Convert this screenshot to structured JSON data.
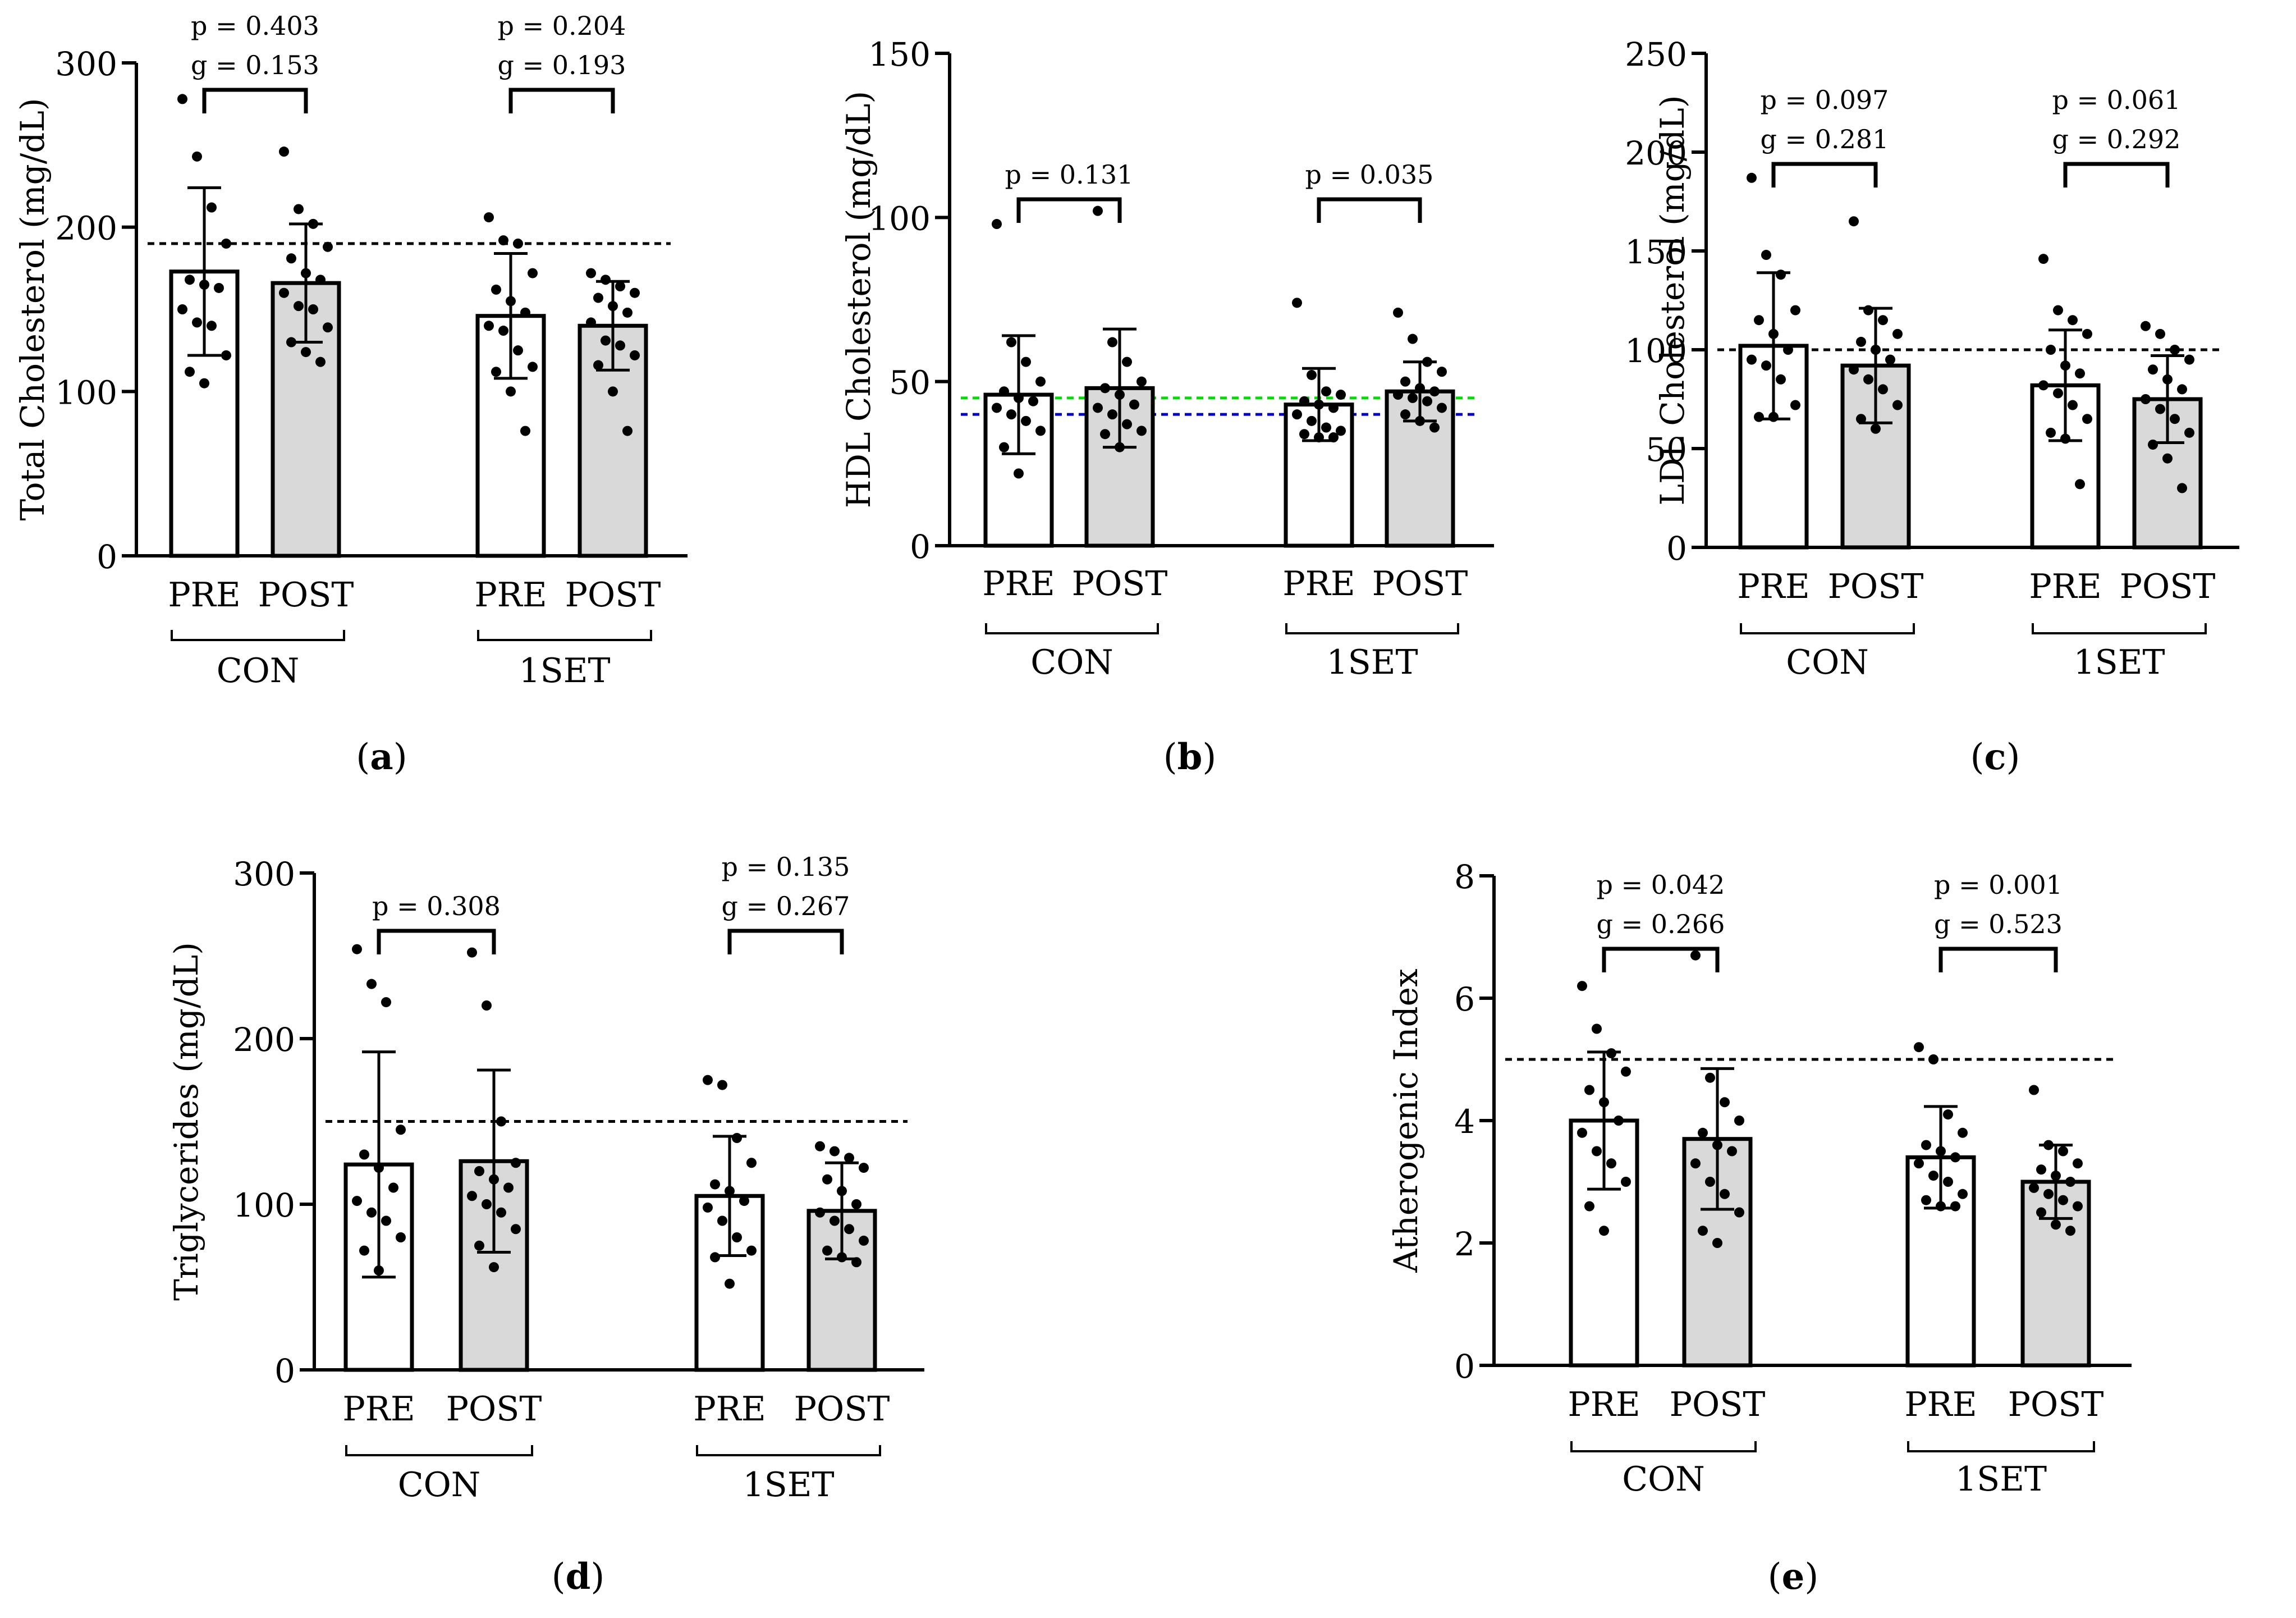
{
  "colors": {
    "pre_fill": "#ffffff",
    "post_fill": "#d9d9d9",
    "stroke": "#000000",
    "ref_black": "#000000",
    "ref_green": "#00dd00",
    "ref_blue": "#0000cc"
  },
  "chart_data": [
    {
      "id": "a",
      "type": "bar",
      "caption_letter": "a",
      "ylabel": "Total Cholesterol (mg/dL)",
      "ylim": [
        0,
        300
      ],
      "yticks": [
        "0",
        "100",
        "200",
        "300"
      ],
      "categories": [
        "PRE",
        "POST",
        "PRE",
        "POST"
      ],
      "groups": [
        "CON",
        "1SET"
      ],
      "series": [
        {
          "name": "CON PRE",
          "mean": 173,
          "sd": 51,
          "points": [
            278,
            243,
            212,
            190,
            168,
            165,
            163,
            150,
            142,
            140,
            122,
            112,
            105
          ]
        },
        {
          "name": "CON POST",
          "mean": 166,
          "sd": 36,
          "points": [
            246,
            211,
            202,
            188,
            181,
            172,
            168,
            160,
            152,
            150,
            139,
            130,
            124,
            118
          ]
        },
        {
          "name": "1SET PRE",
          "mean": 146,
          "sd": 38,
          "points": [
            206,
            192,
            190,
            172,
            162,
            155,
            148,
            140,
            137,
            125,
            115,
            112,
            100,
            76
          ]
        },
        {
          "name": "1SET POST",
          "mean": 140,
          "sd": 27,
          "points": [
            172,
            168,
            164,
            160,
            157,
            152,
            148,
            142,
            131,
            128,
            122,
            116,
            100,
            76
          ]
        }
      ],
      "reference_lines": [
        {
          "y": 190,
          "color": "black"
        }
      ],
      "annotations": [
        {
          "pair": 0,
          "lines": [
            "p = 0.403",
            "g = 0.153"
          ]
        },
        {
          "pair": 1,
          "lines": [
            "p = 0.204",
            "g = 0.193"
          ]
        }
      ]
    },
    {
      "id": "b",
      "type": "bar",
      "caption_letter": "b",
      "ylabel": "HDL Cholesterol (mg/dL)",
      "ylim": [
        0,
        150
      ],
      "yticks": [
        "0",
        "50",
        "100",
        "150"
      ],
      "categories": [
        "PRE",
        "POST",
        "PRE",
        "POST"
      ],
      "groups": [
        "CON",
        "1SET"
      ],
      "series": [
        {
          "name": "CON PRE",
          "mean": 46,
          "sd": 18,
          "points": [
            98,
            62,
            56,
            50,
            47,
            45,
            44,
            42,
            40,
            38,
            35,
            30,
            22
          ]
        },
        {
          "name": "CON POST",
          "mean": 48,
          "sd": 18,
          "points": [
            102,
            62,
            56,
            50,
            48,
            46,
            43,
            42,
            40,
            37,
            35,
            34,
            30
          ]
        },
        {
          "name": "1SET PRE",
          "mean": 43,
          "sd": 11,
          "points": [
            74,
            52,
            47,
            46,
            44,
            43,
            42,
            40,
            38,
            36,
            35,
            34,
            33,
            33
          ]
        },
        {
          "name": "1SET POST",
          "mean": 47,
          "sd": 9,
          "points": [
            71,
            63,
            56,
            53,
            50,
            48,
            47,
            46,
            45,
            44,
            42,
            40,
            38,
            36
          ]
        }
      ],
      "reference_lines": [
        {
          "y": 45,
          "color": "green"
        },
        {
          "y": 40,
          "color": "blue"
        }
      ],
      "annotations": [
        {
          "pair": 0,
          "lines": [
            "p = 0.131"
          ]
        },
        {
          "pair": 1,
          "lines": [
            "p = 0.035"
          ]
        }
      ]
    },
    {
      "id": "c",
      "type": "bar",
      "caption_letter": "c",
      "ylabel": "LDL Cholesterol  (mg/dL)",
      "ylim": [
        0,
        250
      ],
      "yticks": [
        "0",
        "50",
        "100",
        "150",
        "200",
        "250"
      ],
      "categories": [
        "PRE",
        "POST",
        "PRE",
        "POST"
      ],
      "groups": [
        "CON",
        "1SET"
      ],
      "series": [
        {
          "name": "CON PRE",
          "mean": 102,
          "sd": 37,
          "points": [
            187,
            148,
            138,
            120,
            115,
            108,
            100,
            95,
            92,
            85,
            72,
            66,
            66
          ]
        },
        {
          "name": "CON POST",
          "mean": 92,
          "sd": 29,
          "points": [
            165,
            120,
            115,
            108,
            104,
            100,
            95,
            90,
            85,
            80,
            72,
            65,
            60
          ]
        },
        {
          "name": "1SET PRE",
          "mean": 82,
          "sd": 28,
          "points": [
            146,
            120,
            115,
            108,
            100,
            92,
            88,
            82,
            78,
            72,
            65,
            58,
            55,
            32
          ]
        },
        {
          "name": "1SET POST",
          "mean": 75,
          "sd": 22,
          "points": [
            112,
            108,
            100,
            95,
            90,
            85,
            80,
            75,
            70,
            65,
            58,
            52,
            45,
            30
          ]
        }
      ],
      "reference_lines": [
        {
          "y": 100,
          "color": "black"
        }
      ],
      "annotations": [
        {
          "pair": 0,
          "lines": [
            "p = 0.097",
            "g = 0.281"
          ]
        },
        {
          "pair": 1,
          "lines": [
            "p = 0.061",
            "g = 0.292"
          ]
        }
      ]
    },
    {
      "id": "d",
      "type": "bar",
      "caption_letter": "d",
      "ylabel": "Triglycerides (mg/dL)",
      "ylim": [
        0,
        300
      ],
      "yticks": [
        "0",
        "100",
        "200",
        "300"
      ],
      "categories": [
        "PRE",
        "POST",
        "PRE",
        "POST"
      ],
      "groups": [
        "CON",
        "1SET"
      ],
      "series": [
        {
          "name": "CON PRE",
          "mean": 124,
          "sd": 68,
          "points": [
            254,
            233,
            222,
            145,
            130,
            122,
            110,
            102,
            95,
            90,
            80,
            72,
            60
          ]
        },
        {
          "name": "CON POST",
          "mean": 126,
          "sd": 55,
          "points": [
            252,
            220,
            150,
            125,
            120,
            115,
            110,
            105,
            100,
            95,
            85,
            75,
            62
          ]
        },
        {
          "name": "1SET PRE",
          "mean": 105,
          "sd": 36,
          "points": [
            175,
            172,
            140,
            125,
            112,
            108,
            102,
            98,
            90,
            80,
            72,
            68,
            52
          ]
        },
        {
          "name": "1SET POST",
          "mean": 96,
          "sd": 29,
          "points": [
            135,
            132,
            128,
            122,
            115,
            108,
            100,
            95,
            90,
            85,
            78,
            72,
            68,
            65
          ]
        }
      ],
      "reference_lines": [
        {
          "y": 150,
          "color": "black"
        }
      ],
      "annotations": [
        {
          "pair": 0,
          "lines": [
            "p = 0.308"
          ]
        },
        {
          "pair": 1,
          "lines": [
            "p = 0.135",
            "g = 0.267"
          ]
        }
      ]
    },
    {
      "id": "e",
      "type": "bar",
      "caption_letter": "e",
      "ylabel": "Atherogenic Index",
      "ylim": [
        0,
        8
      ],
      "yticks": [
        "0",
        "2",
        "4",
        "6",
        "8"
      ],
      "categories": [
        "PRE",
        "POST",
        "PRE",
        "POST"
      ],
      "groups": [
        "CON",
        "1SET"
      ],
      "series": [
        {
          "name": "CON PRE",
          "mean": 4.0,
          "sd": 1.12,
          "points": [
            6.2,
            5.5,
            5.1,
            4.8,
            4.5,
            4.3,
            4.0,
            3.8,
            3.5,
            3.3,
            3.0,
            2.6,
            2.2
          ]
        },
        {
          "name": "CON POST",
          "mean": 3.7,
          "sd": 1.15,
          "points": [
            6.7,
            4.7,
            4.3,
            4.0,
            3.8,
            3.6,
            3.5,
            3.3,
            3.0,
            2.8,
            2.5,
            2.2,
            2.0
          ]
        },
        {
          "name": "1SET PRE",
          "mean": 3.4,
          "sd": 0.83,
          "points": [
            5.2,
            5.0,
            4.1,
            3.8,
            3.6,
            3.5,
            3.4,
            3.3,
            3.1,
            3.0,
            2.8,
            2.7,
            2.6,
            2.6
          ]
        },
        {
          "name": "1SET POST",
          "mean": 3.0,
          "sd": 0.6,
          "points": [
            4.5,
            3.6,
            3.5,
            3.3,
            3.2,
            3.1,
            3.0,
            2.9,
            2.8,
            2.7,
            2.6,
            2.5,
            2.3,
            2.2
          ]
        }
      ],
      "reference_lines": [
        {
          "y": 5,
          "color": "black"
        }
      ],
      "annotations": [
        {
          "pair": 0,
          "lines": [
            "p = 0.042",
            "g = 0.266"
          ]
        },
        {
          "pair": 1,
          "lines": [
            "p = 0.001",
            "g = 0.523"
          ]
        }
      ]
    }
  ]
}
